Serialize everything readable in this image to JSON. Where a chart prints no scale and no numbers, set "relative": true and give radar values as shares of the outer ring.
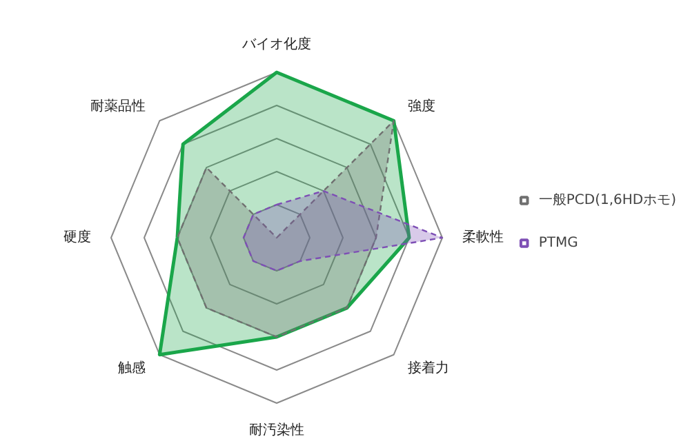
{
  "chart_data": {
    "type": "radar",
    "relative": true,
    "grid": true,
    "legend": "right",
    "marker": "none",
    "categories": [
      "バイオ化度",
      "強度",
      "柔軟性",
      "接着力",
      "耐汚染性",
      "触感",
      "硬度",
      "耐薬品性"
    ],
    "series": [
      {
        "color": "#1aa64a",
        "line_style": "solid",
        "values": [
          1,
          1,
          0.8,
          0.6,
          0.6,
          1,
          0.6,
          0.8
        ]
      },
      {
        "name": "一般PCD(1,6HDホモ)",
        "color": "#707070",
        "line_style": "dashed",
        "values": [
          0,
          1,
          0.6,
          0.6,
          0.6,
          0.6,
          0.6,
          0.6
        ]
      },
      {
        "name": "PTMG",
        "color": "#7e4fb5",
        "line_style": "dashed",
        "values": [
          0.2,
          0.4,
          1,
          0.2,
          0.2,
          0.2,
          0.2,
          0.2
        ]
      }
    ]
  }
}
